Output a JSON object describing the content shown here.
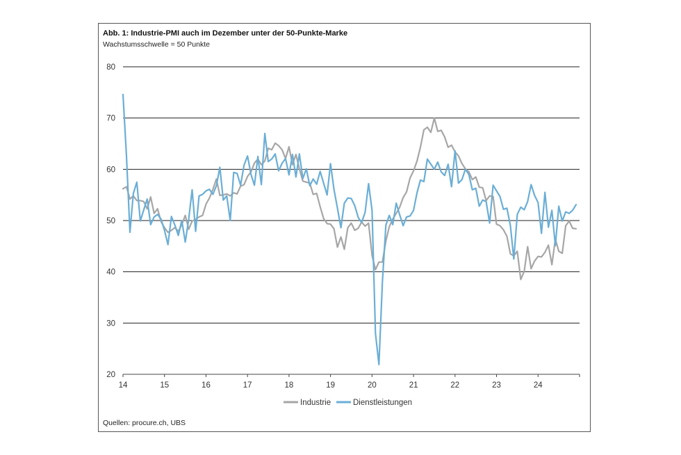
{
  "chart_data": {
    "type": "line",
    "title": "Abb. 1: Industrie-PMI auch im Dezember unter der 50-Punkte-Marke",
    "subtitle": "Wachstumsschwelle = 50 Punkte",
    "source": "Quellen: procure.ch, UBS",
    "xlabel": "",
    "ylabel": "",
    "x_tick_labels": [
      "14",
      "15",
      "16",
      "17",
      "18",
      "19",
      "20",
      "21",
      "22",
      "23",
      "24"
    ],
    "x_tick_values": [
      2014,
      2015,
      2016,
      2017,
      2018,
      2019,
      2020,
      2021,
      2022,
      2023,
      2024
    ],
    "xlim": [
      2014,
      2025
    ],
    "ylim": [
      20,
      80
    ],
    "y_ticks": [
      20,
      30,
      40,
      50,
      60,
      70,
      80
    ],
    "grid": true,
    "legend_position": "bottom-center",
    "series": [
      {
        "name": "Industrie",
        "color": "#a6a6a6",
        "x_start": 2014.0,
        "step": 0.0833333,
        "values": [
          56.2,
          56.6,
          54.2,
          54.8,
          53.9,
          53.9,
          53.7,
          52.3,
          54.6,
          51.4,
          52.3,
          49.8,
          48.6,
          47.7,
          48.1,
          48.6,
          47.9,
          49.2,
          51.0,
          48.3,
          49.9,
          50.2,
          50.7,
          51.0,
          53.2,
          54.4,
          56.1,
          58.1,
          54.9,
          55.0,
          55.2,
          54.8,
          55.4,
          55.2,
          56.7,
          57.0,
          58.6,
          59.5,
          61.2,
          62.0,
          60.9,
          61.6,
          64.1,
          63.8,
          65.1,
          64.6,
          63.8,
          62.1,
          64.4,
          60.9,
          62.9,
          60.1,
          57.7,
          57.5,
          57.3,
          55.1,
          55.3,
          52.7,
          50.4,
          49.4,
          49.3,
          48.4,
          44.8,
          46.8,
          44.4,
          48.6,
          49.5,
          48.1,
          48.5,
          49.7,
          48.9,
          49.5,
          43.2,
          40.4,
          41.9,
          41.9,
          46.0,
          48.8,
          50.3,
          51.4,
          52.6,
          54.5,
          55.6,
          58.3,
          59.7,
          61.6,
          64.3,
          67.7,
          68.2,
          67.2,
          70.0,
          67.4,
          67.6,
          66.3,
          64.3,
          64.7,
          63.4,
          62.6,
          61.1,
          60.1,
          59.5,
          58.0,
          58.5,
          56.5,
          56.4,
          53.9,
          54.8,
          54.7,
          49.3,
          49.0,
          48.2,
          46.9,
          43.5,
          43.1,
          44.0,
          38.5,
          40.1,
          44.9,
          40.6,
          42.1,
          43.0,
          42.9,
          43.8,
          45.2,
          41.4,
          46.4,
          44.0,
          43.6,
          49.0,
          49.9,
          48.5,
          48.4
        ]
      },
      {
        "name": "Dienstleistungen",
        "color": "#6aaed6",
        "x_start": 2014.0,
        "step": 0.0833333,
        "values": [
          74.6,
          62.6,
          47.7,
          55.3,
          57.5,
          49.9,
          52.1,
          54.2,
          49.2,
          50.7,
          51.2,
          50.3,
          48.1,
          45.3,
          50.8,
          49.1,
          47.1,
          50.0,
          45.8,
          50.3,
          56.0,
          47.9,
          54.8,
          55.1,
          55.8,
          56.1,
          55.1,
          56.8,
          60.4,
          54.0,
          54.8,
          50.0,
          59.4,
          59.2,
          56.9,
          60.8,
          62.6,
          59.0,
          56.9,
          62.5,
          57.0,
          67.0,
          61.5,
          62.0,
          63.0,
          59.7,
          61.2,
          62.1,
          58.9,
          62.9,
          58.5,
          63.0,
          58.2,
          60.1,
          56.8,
          58.1,
          57.1,
          59.6,
          57.3,
          55.0,
          61.1,
          56.1,
          52.4,
          48.6,
          53.4,
          54.4,
          54.3,
          52.9,
          50.6,
          49.6,
          51.6,
          57.2,
          52.0,
          28.0,
          21.9,
          38.0,
          49.1,
          51.0,
          49.2,
          53.4,
          51.1,
          49.0,
          50.7,
          50.9,
          52.0,
          55.4,
          57.9,
          57.6,
          62.0,
          61.0,
          60.0,
          61.4,
          59.5,
          58.8,
          61.0,
          56.6,
          63.6,
          57.3,
          58.0,
          60.0,
          59.0,
          56.0,
          56.3,
          52.8,
          54.0,
          53.7,
          49.5,
          56.9,
          55.8,
          54.7,
          52.2,
          52.4,
          49.0,
          42.5,
          51.2,
          52.6,
          52.1,
          53.7,
          57.0,
          54.9,
          53.5,
          47.5,
          55.5,
          48.7,
          52.0,
          45.1,
          52.8,
          49.9,
          51.7,
          51.4,
          52.0,
          53.1
        ]
      }
    ]
  }
}
